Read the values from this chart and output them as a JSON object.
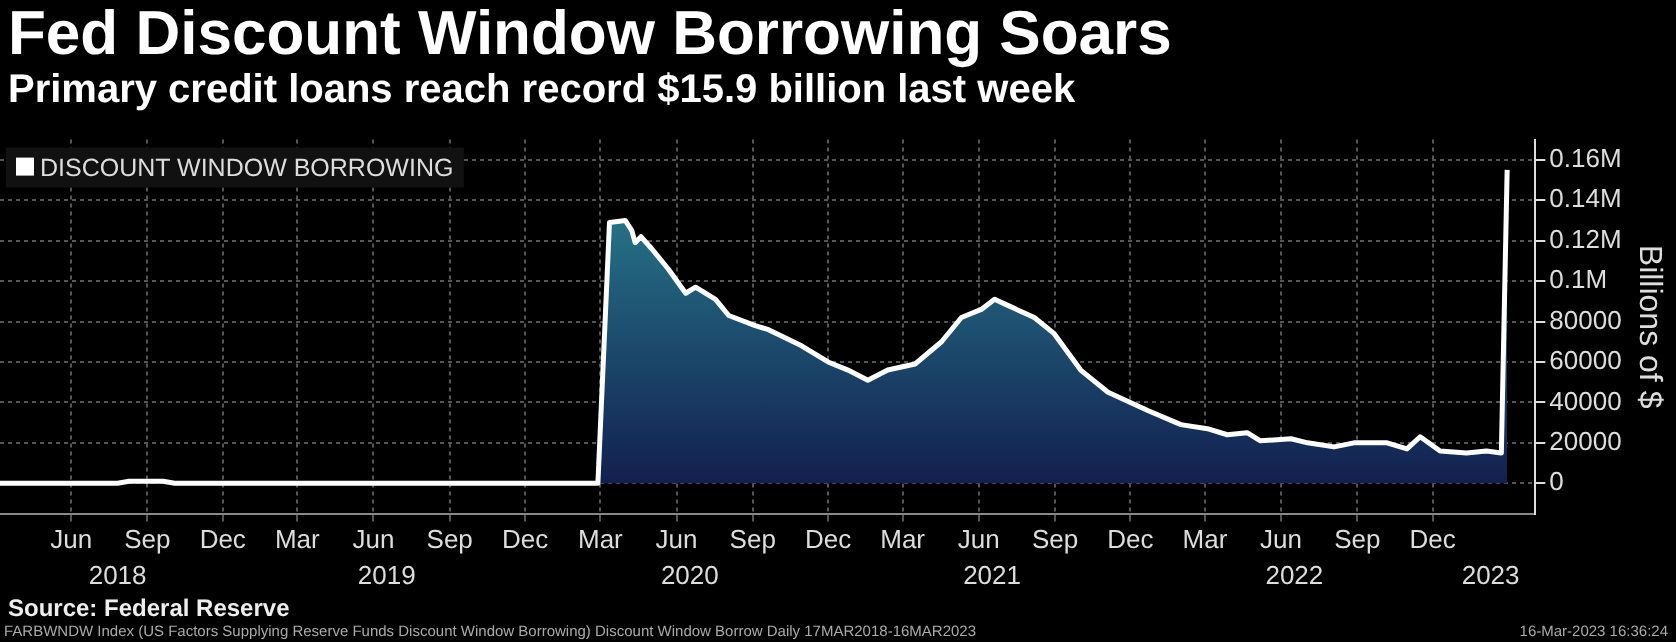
{
  "chart_data": {
    "type": "area",
    "title": "Fed Discount Window Borrowing Soars",
    "subtitle": "Primary credit loans reach record $15.9 billion last week",
    "ylabel": "Billions of $",
    "x": [
      "2018-03-21",
      "2018-08-10",
      "2018-08-24",
      "2018-09-20",
      "2018-10-04",
      "2018-10-18",
      "2019-06-01",
      "2020-03-12",
      "2020-03-26",
      "2020-04-14",
      "2020-04-22",
      "2020-04-26",
      "2020-05-03",
      "2020-05-16",
      "2020-06-05",
      "2020-06-26",
      "2020-07-08",
      "2020-08-01",
      "2020-08-17",
      "2020-09-18",
      "2020-10-04",
      "2020-11-13",
      "2020-12-15",
      "2021-01-08",
      "2021-02-01",
      "2021-02-25",
      "2021-03-30",
      "2021-05-01",
      "2021-05-25",
      "2021-06-18",
      "2021-07-04",
      "2021-07-20",
      "2021-08-21",
      "2021-09-14",
      "2021-10-16",
      "2021-11-18",
      "2022-01-05",
      "2022-02-14",
      "2022-03-18",
      "2022-04-11",
      "2022-05-05",
      "2022-05-21",
      "2022-06-27",
      "2022-07-17",
      "2022-08-18",
      "2022-09-11",
      "2022-10-21",
      "2022-11-14",
      "2022-11-30",
      "2022-12-24",
      "2023-01-25",
      "2023-02-18",
      "2023-03-08",
      "2023-03-15"
    ],
    "series": [
      {
        "name": "DISCOUNT WINDOW BORROWING",
        "color": "#ffffff",
        "values": [
          0,
          0,
          1000,
          1000,
          1000,
          0,
          0,
          0,
          129000,
          130000,
          125000,
          119000,
          122000,
          116000,
          106000,
          94000,
          97000,
          91000,
          83000,
          78000,
          76000,
          68000,
          60000,
          56000,
          51000,
          56000,
          59000,
          70000,
          82000,
          86000,
          91000,
          88000,
          82000,
          74000,
          56000,
          45000,
          36000,
          29000,
          27000,
          24000,
          25000,
          21000,
          22000,
          20000,
          18000,
          20000,
          20000,
          17000,
          23000,
          16000,
          15000,
          16000,
          15000,
          155000
        ]
      }
    ],
    "xlim": [
      "2018-03-21",
      "2023-04-18"
    ],
    "xticks": [
      {
        "value": "2018-06-15",
        "label": "Jun"
      },
      {
        "value": "2018-09-15",
        "label": "Sep"
      },
      {
        "value": "2018-12-15",
        "label": "Dec"
      },
      {
        "value": "2019-03-15",
        "label": "Mar"
      },
      {
        "value": "2019-06-15",
        "label": "Jun"
      },
      {
        "value": "2019-09-15",
        "label": "Sep"
      },
      {
        "value": "2019-12-15",
        "label": "Dec"
      },
      {
        "value": "2020-03-15",
        "label": "Mar"
      },
      {
        "value": "2020-06-15",
        "label": "Jun"
      },
      {
        "value": "2020-09-15",
        "label": "Sep"
      },
      {
        "value": "2020-12-15",
        "label": "Dec"
      },
      {
        "value": "2021-03-15",
        "label": "Mar"
      },
      {
        "value": "2021-06-15",
        "label": "Jun"
      },
      {
        "value": "2021-09-15",
        "label": "Sep"
      },
      {
        "value": "2021-12-15",
        "label": "Dec"
      },
      {
        "value": "2022-03-15",
        "label": "Mar"
      },
      {
        "value": "2022-06-15",
        "label": "Jun"
      },
      {
        "value": "2022-09-15",
        "label": "Sep"
      },
      {
        "value": "2022-12-15",
        "label": "Dec"
      }
    ],
    "x2lim": [
      "2018-03-21",
      "2023-04-18"
    ],
    "x2ticks": [
      {
        "value": "2018-08-10",
        "label": "2018"
      },
      {
        "value": "2019-07-01",
        "label": "2019"
      },
      {
        "value": "2020-07-01",
        "label": "2020"
      },
      {
        "value": "2021-07-01",
        "label": "2021"
      },
      {
        "value": "2022-07-01",
        "label": "2022"
      },
      {
        "value": "2023-02-23",
        "label": "2023"
      }
    ],
    "ylim": [
      -15000,
      170000
    ],
    "yticks": [
      0,
      20000,
      40000,
      60000,
      80000,
      {
        "value": 100000,
        "label": "0.1M"
      },
      {
        "value": 120000,
        "label": "0.12M"
      },
      {
        "value": 140000,
        "label": "0.14M"
      },
      {
        "value": 160000,
        "label": "0.16M"
      }
    ],
    "grid": true,
    "legend": "top left",
    "annotations": [
      "Source: Federal Reserve",
      "FARBWNDW Index (US Factors Supplying Reserve Funds Discount Window Borrowing) Discount Window Borrow  Daily 17MAR2018-16MAR2023",
      "16-Mar-2023 16:36:24"
    ]
  }
}
